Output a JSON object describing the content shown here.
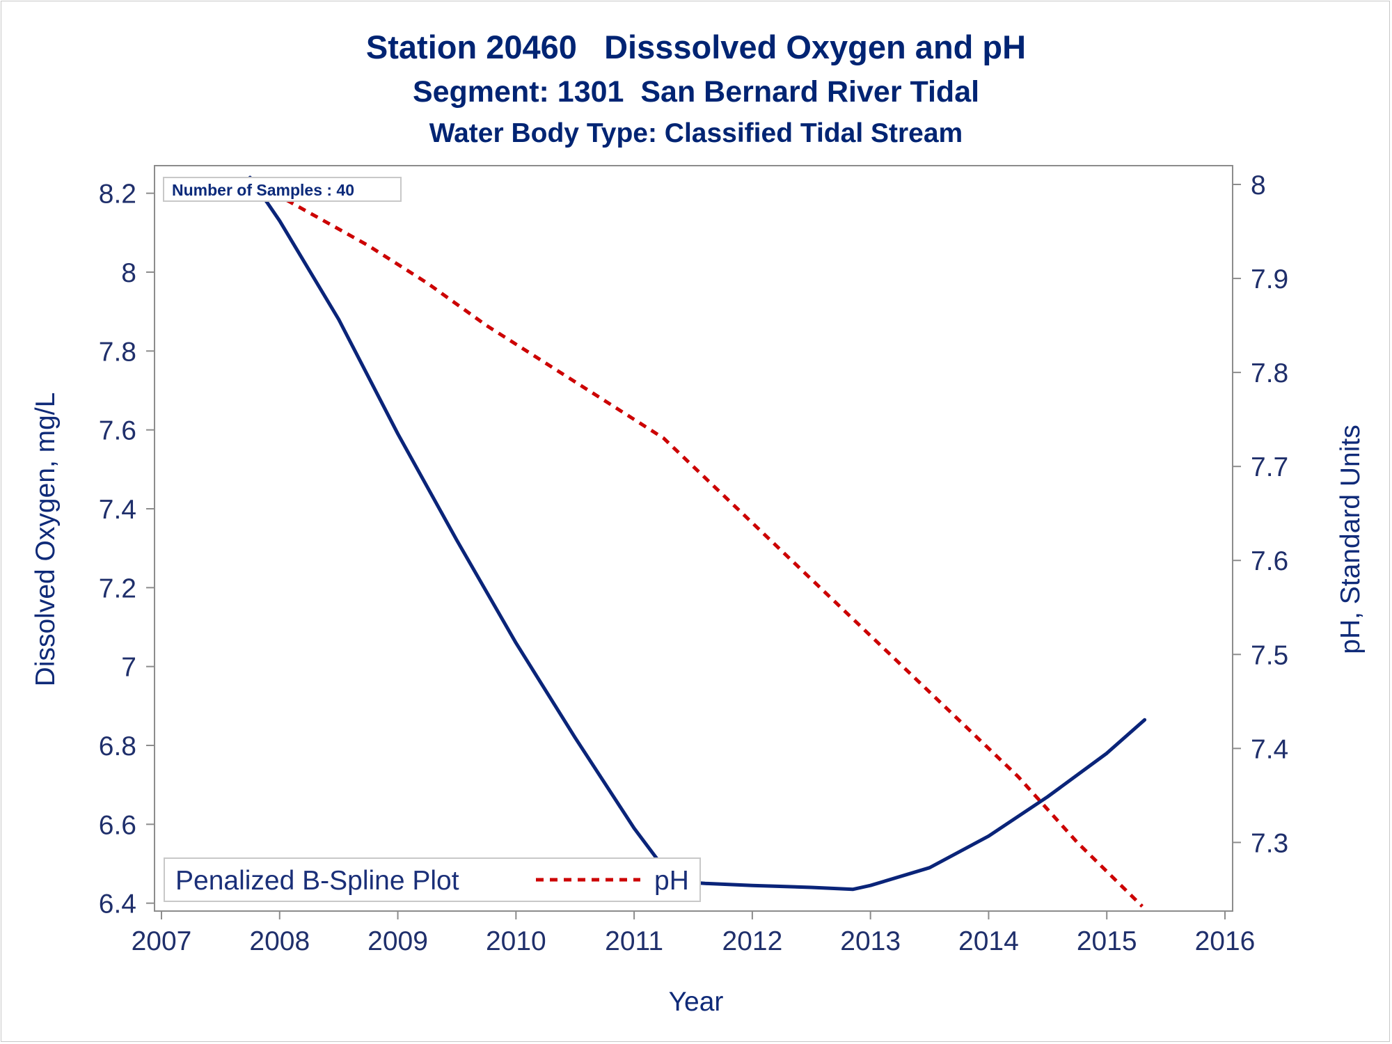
{
  "titles": {
    "line1": "Station 20460   Disssolved Oxygen and pH",
    "line2": "Segment: 1301  San Bernard River Tidal",
    "line3": "Water Body Type: Classified Tidal Stream"
  },
  "inset_label": "Number of Samples : 40",
  "legend": {
    "title": "Penalized B-Spline Plot",
    "entries": [
      "pH"
    ]
  },
  "colors": {
    "do_line": "#0a2479",
    "ph_line": "#cc0000",
    "axis": "#8c8c8c",
    "text": "#1f2f6b"
  },
  "chart_data": {
    "type": "line",
    "xlabel": "Year",
    "ylabel": "Dissolved Oxygen, mg/L",
    "y2label": "pH, Standard Units",
    "xlim": [
      2007,
      2016
    ],
    "ylim": [
      6.38,
      8.27
    ],
    "y2lim": [
      7.227,
      8.02
    ],
    "xticks": [
      2007,
      2008,
      2009,
      2010,
      2011,
      2012,
      2013,
      2014,
      2015,
      2016
    ],
    "yticks": [
      6.4,
      6.6,
      6.8,
      7,
      7.2,
      7.4,
      7.6,
      7.8,
      8,
      8.2
    ],
    "y2ticks": [
      7.3,
      7.4,
      7.5,
      7.6,
      7.7,
      7.8,
      7.9,
      8
    ],
    "grid": false,
    "legend_position": "bottom-left",
    "series": [
      {
        "axis": "left",
        "style": "solid",
        "points": [
          [
            2007.75,
            8.24
          ],
          [
            2008.0,
            8.13
          ],
          [
            2008.5,
            7.88
          ],
          [
            2009.0,
            7.59
          ],
          [
            2009.5,
            7.32
          ],
          [
            2010.0,
            7.06
          ],
          [
            2010.5,
            6.82
          ],
          [
            2011.0,
            6.59
          ],
          [
            2011.25,
            6.49
          ],
          [
            2011.35,
            6.455
          ],
          [
            2011.6,
            6.45
          ],
          [
            2012.0,
            6.445
          ],
          [
            2012.5,
            6.44
          ],
          [
            2012.85,
            6.435
          ],
          [
            2013.0,
            6.445
          ],
          [
            2013.5,
            6.49
          ],
          [
            2014.0,
            6.57
          ],
          [
            2014.5,
            6.67
          ],
          [
            2015.0,
            6.78
          ],
          [
            2015.32,
            6.865
          ]
        ]
      },
      {
        "name": "pH",
        "axis": "right",
        "style": "dashed",
        "points": [
          [
            2007.75,
            8.005
          ],
          [
            2008.25,
            7.97
          ],
          [
            2008.75,
            7.935
          ],
          [
            2009.25,
            7.895
          ],
          [
            2009.75,
            7.85
          ],
          [
            2010.25,
            7.81
          ],
          [
            2010.75,
            7.77
          ],
          [
            2011.25,
            7.73
          ],
          [
            2011.75,
            7.67
          ],
          [
            2012.25,
            7.61
          ],
          [
            2012.75,
            7.55
          ],
          [
            2013.25,
            7.49
          ],
          [
            2013.75,
            7.43
          ],
          [
            2014.25,
            7.37
          ],
          [
            2014.75,
            7.3
          ],
          [
            2015.3,
            7.232
          ]
        ]
      }
    ]
  }
}
